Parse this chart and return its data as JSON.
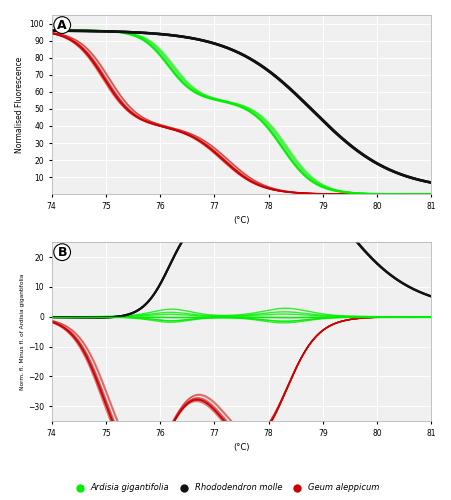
{
  "title_A": "A",
  "title_B": "B",
  "xlabel": "(°C)",
  "ylabel_A": "Normalised Fluorescence",
  "ylabel_B": "Norm. fl. Minus fl. of Ardisia gigantifolia",
  "xlim": [
    74.0,
    81.0
  ],
  "ylim_A": [
    0,
    105
  ],
  "ylim_B": [
    -35,
    25
  ],
  "xticks": [
    74.0,
    75.0,
    76.0,
    77.0,
    78.0,
    79.0,
    80.0,
    81.0
  ],
  "yticks_A": [
    10,
    20,
    30,
    40,
    50,
    60,
    70,
    80,
    90,
    100
  ],
  "yticks_B": [
    -30,
    -20,
    -10,
    0,
    10,
    20
  ],
  "color_green": "#00EE00",
  "color_black": "#111111",
  "color_red": "#CC0000",
  "background": "#f0f0f0",
  "grid_color": "#ffffff",
  "legend_items": [
    "Ardisia gigantifolia",
    "Rhododendron molle",
    "Geum aleppicum"
  ],
  "legend_colors": [
    "#00EE00",
    "#111111",
    "#CC0000"
  ]
}
